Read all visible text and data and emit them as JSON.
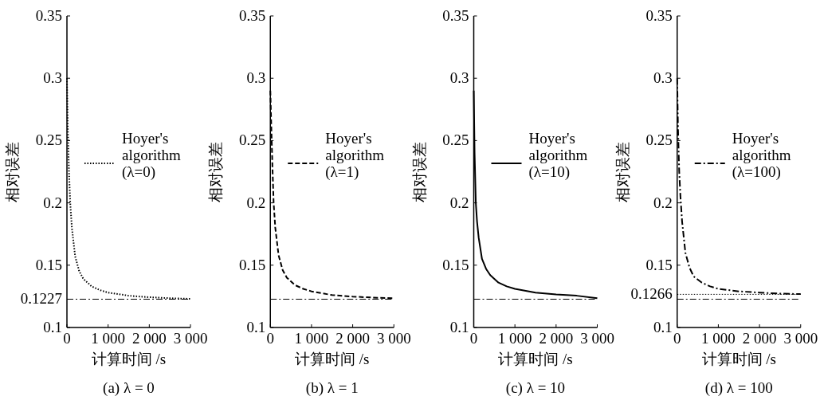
{
  "chart_data": [
    {
      "type": "line",
      "title": "(a) λ = 0",
      "xlabel": "计算时间 /s",
      "ylabel": "相对误差",
      "xlim": [
        0,
        3000
      ],
      "ylim": [
        0.1,
        0.35
      ],
      "xticks": [
        {
          "value": 0,
          "label": "0"
        },
        {
          "value": 1000,
          "label": "1 000"
        },
        {
          "value": 2000,
          "label": "2 000"
        },
        {
          "value": 3000,
          "label": "3 000"
        }
      ],
      "yticks": [
        0.1,
        0.15,
        0.2,
        0.25,
        0.3,
        0.35
      ],
      "x": [
        0,
        20,
        50,
        80,
        120,
        200,
        300,
        400,
        600,
        800,
        1000,
        1500,
        2000,
        2500,
        3000
      ],
      "series": [
        {
          "name": "Hoyer's\nalgorithm\n(λ=0)",
          "color": "#000000",
          "line_style": "dotted",
          "values": [
            0.3,
            0.26,
            0.225,
            0.2,
            0.18,
            0.157,
            0.145,
            0.139,
            0.133,
            0.13,
            0.128,
            0.1255,
            0.1243,
            0.1235,
            0.123
          ]
        }
      ],
      "ref_lines": [
        {
          "axis": "y",
          "value": 0.1227,
          "label": "0.1227",
          "line_style": "dashdot",
          "color": "#000000"
        }
      ],
      "legend": "right"
    },
    {
      "type": "line",
      "title": "(b) λ = 1",
      "xlabel": "计算时间 /s",
      "ylabel": "相对误差",
      "xlim": [
        0,
        3000
      ],
      "ylim": [
        0.1,
        0.35
      ],
      "xticks": [
        {
          "value": 0,
          "label": "0"
        },
        {
          "value": 1000,
          "label": "1 000"
        },
        {
          "value": 2000,
          "label": "2 000"
        },
        {
          "value": 3000,
          "label": "3 000"
        }
      ],
      "yticks": [
        0.1,
        0.15,
        0.2,
        0.25,
        0.3,
        0.35
      ],
      "x": [
        0,
        20,
        50,
        80,
        120,
        200,
        300,
        400,
        600,
        800,
        1000,
        1500,
        2000,
        2500,
        3000
      ],
      "series": [
        {
          "name": "Hoyer's\nalgorithm\n(λ=1)",
          "color": "#000000",
          "line_style": "dashed",
          "values": [
            0.29,
            0.265,
            0.23,
            0.2,
            0.18,
            0.158,
            0.146,
            0.14,
            0.134,
            0.131,
            0.129,
            0.126,
            0.1248,
            0.124,
            0.1235
          ]
        }
      ],
      "ref_lines": [
        {
          "axis": "y",
          "value": 0.1227,
          "line_style": "dashdot",
          "color": "#000000"
        }
      ],
      "legend": "right"
    },
    {
      "type": "line",
      "title": "(c) λ = 10",
      "xlabel": "计算时间 /s",
      "ylabel": "相对误差",
      "xlim": [
        0,
        3000
      ],
      "ylim": [
        0.1,
        0.35
      ],
      "xticks": [
        {
          "value": 0,
          "label": "0"
        },
        {
          "value": 1000,
          "label": "1 000"
        },
        {
          "value": 2000,
          "label": "2 000"
        },
        {
          "value": 3000,
          "label": "3 000"
        }
      ],
      "yticks": [
        0.1,
        0.15,
        0.2,
        0.25,
        0.3,
        0.35
      ],
      "x": [
        0,
        20,
        50,
        80,
        120,
        200,
        300,
        400,
        600,
        800,
        1000,
        1500,
        2000,
        2500,
        3000
      ],
      "series": [
        {
          "name": "Hoyer's\nalgorithm\n(λ=10)",
          "color": "#000000",
          "line_style": "solid",
          "values": [
            0.29,
            0.24,
            0.2,
            0.185,
            0.172,
            0.155,
            0.147,
            0.142,
            0.136,
            0.133,
            0.131,
            0.128,
            0.1265,
            0.1255,
            0.1235
          ]
        }
      ],
      "ref_lines": [
        {
          "axis": "y",
          "value": 0.1227,
          "line_style": "dashdot",
          "color": "#000000"
        }
      ],
      "legend": "right"
    },
    {
      "type": "line",
      "title": "(d) λ = 100",
      "xlabel": "计算时间 /s",
      "ylabel": "相对误差",
      "xlim": [
        0,
        3000
      ],
      "ylim": [
        0.1,
        0.35
      ],
      "xticks": [
        {
          "value": 0,
          "label": "0"
        },
        {
          "value": 1000,
          "label": "1 000"
        },
        {
          "value": 2000,
          "label": "2 000"
        },
        {
          "value": 3000,
          "label": "3 000"
        }
      ],
      "yticks": [
        0.1,
        0.15,
        0.2,
        0.25,
        0.3,
        0.35
      ],
      "x": [
        0,
        20,
        50,
        80,
        120,
        200,
        300,
        400,
        600,
        800,
        1000,
        1500,
        2000,
        2500,
        3000
      ],
      "series": [
        {
          "name": "Hoyer's\nalgorithm\n(λ=100)",
          "color": "#000000",
          "line_style": "dashdot",
          "values": [
            0.3,
            0.26,
            0.225,
            0.205,
            0.185,
            0.16,
            0.148,
            0.141,
            0.136,
            0.133,
            0.131,
            0.129,
            0.128,
            0.1272,
            0.1268
          ]
        }
      ],
      "ref_lines": [
        {
          "axis": "y",
          "value": 0.1227,
          "line_style": "dashdot",
          "color": "#000000"
        },
        {
          "axis": "y",
          "value": 0.1266,
          "label": "0.1266",
          "line_style": "dotted",
          "color": "#000000"
        }
      ],
      "legend": "right"
    }
  ]
}
